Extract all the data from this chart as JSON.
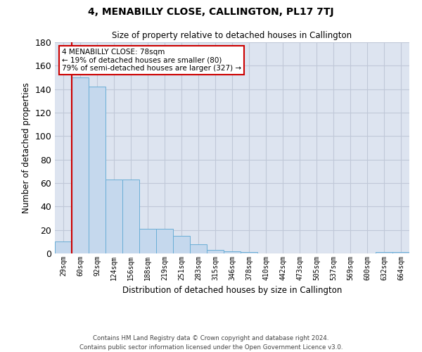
{
  "title": "4, MENABILLY CLOSE, CALLINGTON, PL17 7TJ",
  "subtitle": "Size of property relative to detached houses in Callington",
  "xlabel": "Distribution of detached houses by size in Callington",
  "ylabel": "Number of detached properties",
  "bar_color": "#c5d8ed",
  "bar_edge_color": "#6aaed6",
  "grid_color": "#c0c8d8",
  "background_color": "#dde4f0",
  "categories": [
    "29sqm",
    "60sqm",
    "92sqm",
    "124sqm",
    "156sqm",
    "188sqm",
    "219sqm",
    "251sqm",
    "283sqm",
    "315sqm",
    "346sqm",
    "378sqm",
    "410sqm",
    "442sqm",
    "473sqm",
    "505sqm",
    "537sqm",
    "569sqm",
    "600sqm",
    "632sqm",
    "664sqm"
  ],
  "values": [
    10,
    150,
    142,
    63,
    63,
    21,
    21,
    15,
    8,
    3,
    2,
    1,
    0,
    0,
    0,
    0,
    0,
    0,
    0,
    1,
    1
  ],
  "ylim": [
    0,
    180
  ],
  "yticks": [
    0,
    20,
    40,
    60,
    80,
    100,
    120,
    140,
    160,
    180
  ],
  "property_label": "4 MENABILLY CLOSE: 78sqm",
  "annotation_line1": "← 19% of detached houses are smaller (80)",
  "annotation_line2": "79% of semi-detached houses are larger (327) →",
  "vline_x": 0.5,
  "footer_line1": "Contains HM Land Registry data © Crown copyright and database right 2024.",
  "footer_line2": "Contains public sector information licensed under the Open Government Licence v3.0."
}
